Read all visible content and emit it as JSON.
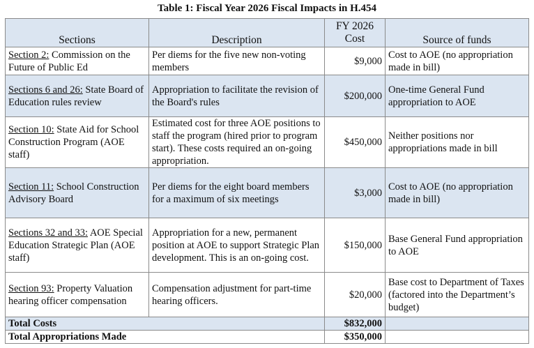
{
  "title": "Table 1: Fiscal Year 2026 Fiscal Impacts in H.454",
  "table": {
    "header": [
      "Sections",
      "Description",
      "FY 2026 Cost",
      "Source of funds"
    ],
    "rows": [
      {
        "section_link": "Section 2:",
        "section_text": "Commission on the Future of Public Ed",
        "description": "Per diems for the five new non-voting members",
        "cost": "$9,000",
        "source": "Cost to AOE (no appropriation made in bill)"
      },
      {
        "section_link": "Sections 6 and 26:",
        "section_text": "State Board of Education rules review",
        "description": "Appropriation to facilitate the revision of the Board's rules",
        "cost": "$200,000",
        "source": "One-time General Fund appropriation to AOE"
      },
      {
        "section_link": "Section 10:",
        "section_text": "State Aid for School Construction Program (AOE staff)",
        "description": "Estimated cost for three AOE positions to staff the program (hired prior to program start). These costs required an on-going appropriation.",
        "cost": "$450,000",
        "source": "Neither positions nor appropriations made in bill"
      },
      {
        "section_link": "Section 11:",
        "section_text": "School Construction Advisory Board",
        "description": "Per diems for the eight board members for a maximum of six meetings",
        "cost": "$3,000",
        "source": "Cost to AOE (no appropriation made in bill)"
      },
      {
        "section_link": "Sections 32 and 33:",
        "section_text": "AOE Special Education Strategic Plan (AOE staff)",
        "description": "Appropriation for a new, permanent position at AOE to support Strategic Plan development. This is an on-going cost.",
        "cost": "$150,000",
        "source": "Base General Fund appropriation to AOE"
      },
      {
        "section_link": "Section 93:",
        "section_text": "Property Valuation hearing officer compensation",
        "description": "Compensation adjustment for part-time hearing officers.",
        "cost": "$20,000",
        "source": "Base cost to Department of Taxes (factored into the Department’s budget)"
      }
    ],
    "totals": [
      {
        "label": "Total Costs",
        "cost": "$832,000"
      },
      {
        "label": "Total Appropriations Made",
        "cost": "$350,000"
      }
    ]
  }
}
